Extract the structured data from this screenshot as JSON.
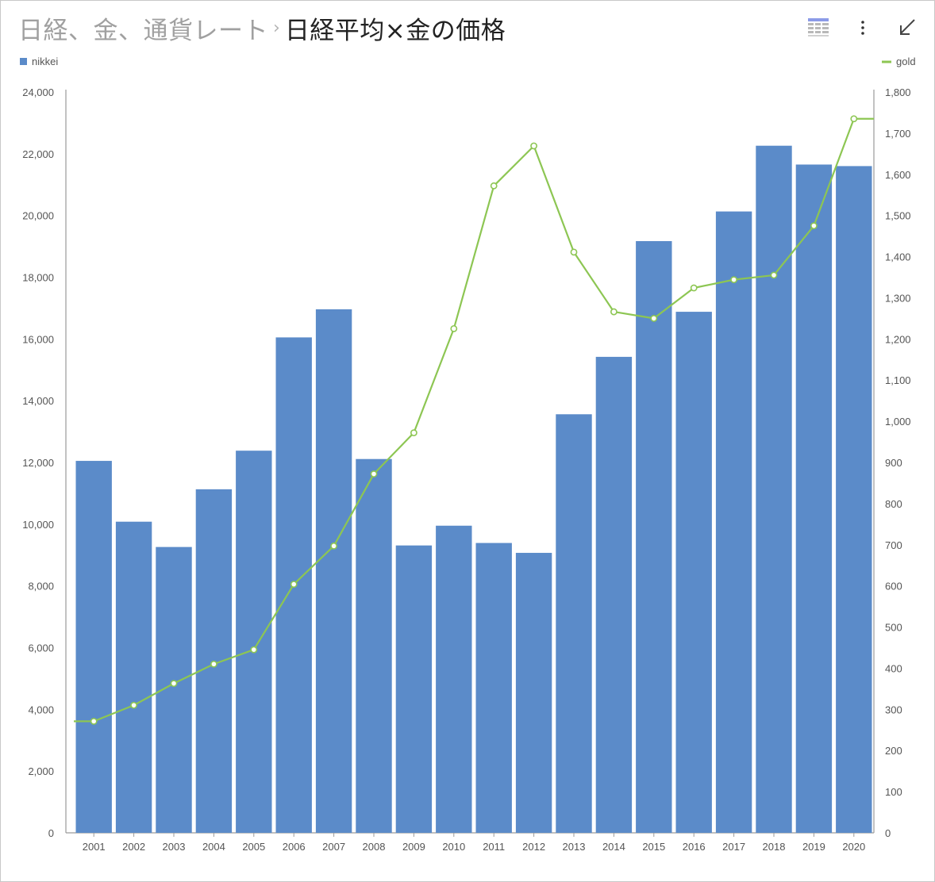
{
  "header": {
    "breadcrumb": "日経、金、通貨レート",
    "separator": "›",
    "title": "日経平均×金の価格"
  },
  "toolbar": {
    "icons": [
      "table-view-icon",
      "more-vert-icon",
      "collapse-arrow-icon"
    ]
  },
  "colors": {
    "nikkei": "#5b8bc9",
    "gold": "#8dc653",
    "axis": "#9a9a9a",
    "tick_text": "#555555"
  },
  "chart_data": {
    "type": "bar",
    "categories": [
      "2001",
      "2002",
      "2003",
      "2004",
      "2005",
      "2006",
      "2007",
      "2008",
      "2009",
      "2010",
      "2011",
      "2012",
      "2013",
      "2014",
      "2015",
      "2016",
      "2017",
      "2018",
      "2019",
      "2020"
    ],
    "series": [
      {
        "name": "nikkei",
        "type": "bar",
        "axis": "left",
        "values": [
          12050,
          10080,
          9260,
          11130,
          12380,
          16050,
          16960,
          12110,
          9310,
          9950,
          9390,
          9070,
          13560,
          15420,
          19170,
          16880,
          20130,
          22260,
          21650,
          21600
        ]
      },
      {
        "name": "gold",
        "type": "line",
        "axis": "right",
        "values": [
          271,
          310,
          363,
          410,
          445,
          604,
          697,
          872,
          972,
          1225,
          1572,
          1669,
          1411,
          1266,
          1250,
          1324,
          1344,
          1355,
          1475,
          1735
        ]
      }
    ],
    "y_left": {
      "min": 0,
      "max": 24000,
      "step": 2000,
      "ticks": [
        "0",
        "2,000",
        "4,000",
        "6,000",
        "8,000",
        "10,000",
        "12,000",
        "14,000",
        "16,000",
        "18,000",
        "20,000",
        "22,000",
        "24,000"
      ]
    },
    "y_right": {
      "min": 0,
      "max": 1800,
      "step": 100,
      "ticks": [
        "0",
        "100",
        "200",
        "300",
        "400",
        "500",
        "600",
        "700",
        "800",
        "900",
        "1,000",
        "1,100",
        "1,200",
        "1,300",
        "1,400",
        "1,500",
        "1,600",
        "1,700",
        "1,800"
      ]
    },
    "xlabel": "",
    "ylabel": "",
    "grid": false,
    "legend": [
      {
        "name": "nikkei",
        "marker": "square",
        "position": "top-left"
      },
      {
        "name": "gold",
        "marker": "line",
        "position": "top-right"
      }
    ]
  }
}
